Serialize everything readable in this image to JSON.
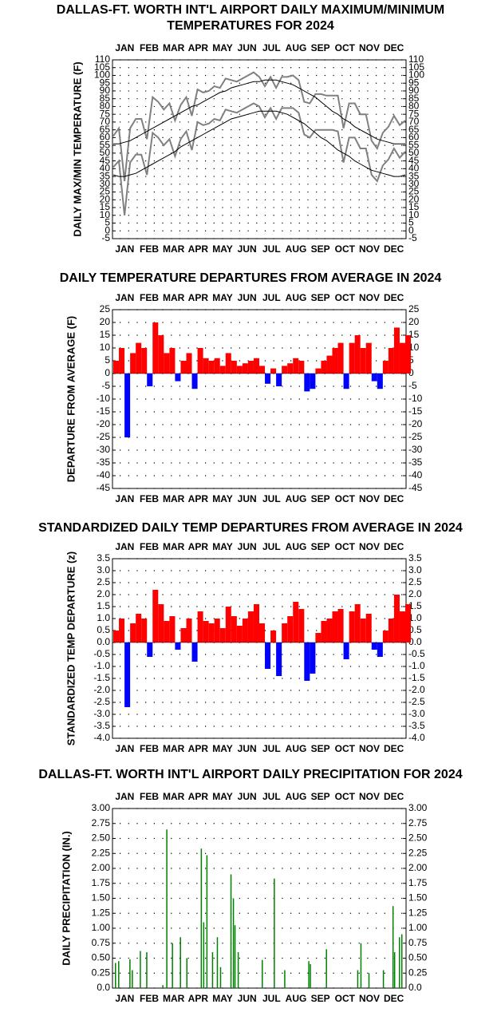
{
  "chart_data": [
    {
      "type": "line",
      "title": [
        "DALLAS-FT. WORTH INT'L AIRPORT DAILY MAXIMUM/MINIMUM",
        "TEMPERATURES FOR 2024"
      ],
      "y_label": "DAILY MAX/MIN TEMPERATURE (F)",
      "categories": [
        "JAN",
        "FEB",
        "MAR",
        "APR",
        "MAY",
        "JUN",
        "JUL",
        "AUG",
        "SEP",
        "OCT",
        "NOV",
        "DEC"
      ],
      "xlim": [
        0,
        366
      ],
      "x": [
        1,
        8,
        15,
        22,
        29,
        36,
        43,
        50,
        57,
        64,
        71,
        78,
        85,
        92,
        99,
        106,
        113,
        120,
        127,
        134,
        141,
        148,
        155,
        162,
        169,
        176,
        183,
        190,
        197,
        204,
        211,
        218,
        225,
        232,
        239,
        246,
        253,
        260,
        267,
        274,
        281,
        288,
        295,
        302,
        309,
        316,
        323,
        330,
        337,
        344,
        351,
        358,
        365
      ],
      "series": [
        {
          "color": "#808080",
          "values": [
            61,
            66,
            32,
            66,
            72,
            72,
            59,
            86,
            83,
            78,
            82,
            71,
            81,
            86,
            74,
            91,
            89,
            90,
            93,
            92,
            98,
            97,
            96,
            98,
            100,
            102,
            99,
            93,
            99,
            92,
            99,
            99,
            100,
            97,
            83,
            82,
            88,
            88,
            87,
            87,
            87,
            66,
            82,
            82,
            75,
            75,
            58,
            53,
            63,
            67,
            74,
            68,
            71
          ]
        },
        {
          "color": "#808080",
          "values": [
            41,
            45,
            10,
            44,
            49,
            49,
            36,
            63,
            60,
            55,
            59,
            48,
            59,
            64,
            52,
            70,
            68,
            69,
            72,
            71,
            78,
            77,
            76,
            78,
            80,
            82,
            80,
            73,
            79,
            72,
            79,
            79,
            79,
            76,
            62,
            60,
            65,
            65,
            65,
            65,
            64,
            44,
            60,
            60,
            53,
            53,
            36,
            32,
            42,
            46,
            53,
            47,
            51
          ]
        },
        {
          "color": "#000000",
          "values": [
            56,
            56,
            57,
            58,
            60,
            62,
            64,
            66,
            68,
            70,
            72,
            74,
            76,
            78,
            80,
            81,
            83,
            85,
            87,
            89,
            90,
            92,
            93,
            94,
            95,
            96,
            96,
            97,
            97,
            97,
            96,
            95,
            94,
            92,
            90,
            88,
            86,
            83,
            80,
            77,
            75,
            72,
            70,
            67,
            65,
            63,
            61,
            59,
            58,
            57,
            56,
            56,
            56
          ]
        },
        {
          "color": "#000000",
          "values": [
            36,
            35,
            35,
            36,
            37,
            39,
            41,
            43,
            45,
            47,
            49,
            51,
            54,
            56,
            58,
            60,
            62,
            64,
            66,
            68,
            70,
            72,
            73,
            74,
            75,
            76,
            77,
            77,
            77,
            77,
            76,
            75,
            73,
            71,
            69,
            66,
            63,
            60,
            58,
            55,
            52,
            50,
            48,
            45,
            43,
            41,
            39,
            38,
            37,
            36,
            35,
            35,
            36
          ]
        }
      ],
      "ylim": [
        -5,
        110
      ],
      "yticks": [
        -5,
        0,
        5,
        10,
        15,
        20,
        25,
        30,
        35,
        40,
        45,
        50,
        55,
        60,
        65,
        70,
        75,
        80,
        85,
        90,
        95,
        100,
        105,
        110
      ],
      "grid": true
    },
    {
      "type": "bar",
      "title": [
        "DAILY TEMPERATURE DEPARTURES FROM AVERAGE IN 2024"
      ],
      "y_label": "DEPARTURE FROM AVERAGE (F)",
      "categories": [
        "JAN",
        "FEB",
        "MAR",
        "APR",
        "MAY",
        "JUN",
        "JUL",
        "AUG",
        "SEP",
        "OCT",
        "NOV",
        "DEC"
      ],
      "xlim": [
        0,
        366
      ],
      "x": [
        1,
        8,
        15,
        22,
        29,
        36,
        43,
        50,
        57,
        64,
        71,
        78,
        85,
        92,
        99,
        106,
        113,
        120,
        127,
        134,
        141,
        148,
        155,
        162,
        169,
        176,
        183,
        190,
        197,
        204,
        211,
        218,
        225,
        232,
        239,
        246,
        253,
        260,
        267,
        274,
        281,
        288,
        295,
        302,
        309,
        316,
        323,
        330,
        337,
        344,
        351,
        358,
        365
      ],
      "values": [
        5,
        10,
        -25,
        8,
        12,
        10,
        -5,
        20,
        15,
        8,
        10,
        -3,
        5,
        8,
        -6,
        10,
        6,
        5,
        6,
        3,
        8,
        5,
        3,
        4,
        5,
        6,
        3,
        -4,
        2,
        -5,
        3,
        4,
        6,
        5,
        -7,
        -6,
        2,
        5,
        7,
        10,
        12,
        -6,
        12,
        15,
        10,
        12,
        -3,
        -6,
        5,
        10,
        18,
        12,
        15
      ],
      "color_positive": "#ff0000",
      "color_negative": "#0000ff",
      "ylim": [
        -45,
        25
      ],
      "yticks": [
        -45,
        -40,
        -35,
        -30,
        -25,
        -20,
        -15,
        -10,
        -5,
        0,
        5,
        10,
        15,
        20,
        25
      ],
      "grid": true
    },
    {
      "type": "bar",
      "title": [
        "STANDARDIZED DAILY TEMP DEPARTURES FROM AVERAGE IN 2024"
      ],
      "y_label": "STANDARDIZED TEMP DEPARTURE (z)",
      "categories": [
        "JAN",
        "FEB",
        "MAR",
        "APR",
        "MAY",
        "JUN",
        "JUL",
        "AUG",
        "SEP",
        "OCT",
        "NOV",
        "DEC"
      ],
      "xlim": [
        0,
        366
      ],
      "x": [
        1,
        8,
        15,
        22,
        29,
        36,
        43,
        50,
        57,
        64,
        71,
        78,
        85,
        92,
        99,
        106,
        113,
        120,
        127,
        134,
        141,
        148,
        155,
        162,
        169,
        176,
        183,
        190,
        197,
        204,
        211,
        218,
        225,
        232,
        239,
        246,
        253,
        260,
        267,
        274,
        281,
        288,
        295,
        302,
        309,
        316,
        323,
        330,
        337,
        344,
        351,
        358,
        365
      ],
      "values": [
        0.5,
        1.0,
        -2.7,
        0.8,
        1.2,
        1.0,
        -0.6,
        2.2,
        1.6,
        0.9,
        1.1,
        -0.3,
        0.6,
        1.0,
        -0.8,
        1.3,
        0.9,
        0.8,
        1.0,
        0.6,
        1.5,
        1.1,
        0.7,
        1.0,
        1.3,
        1.6,
        0.8,
        -1.1,
        0.5,
        -1.4,
        0.8,
        1.1,
        1.7,
        1.4,
        -1.6,
        -1.3,
        0.4,
        0.9,
        1.0,
        1.3,
        1.4,
        -0.7,
        1.3,
        1.6,
        1.0,
        1.2,
        -0.3,
        -0.6,
        0.5,
        1.0,
        2.0,
        1.3,
        1.6
      ],
      "color_positive": "#ff0000",
      "color_negative": "#0000ff",
      "ylim": [
        -4,
        3.5
      ],
      "yticks": [
        {
          "value": -4,
          "label": "-4.0"
        },
        {
          "value": -3.5,
          "label": "-3.5"
        },
        {
          "value": -3,
          "label": "-3.0"
        },
        {
          "value": -2.5,
          "label": "-2.5"
        },
        {
          "value": -2,
          "label": "-2.0"
        },
        {
          "value": -1.5,
          "label": "-1.5"
        },
        {
          "value": -1,
          "label": "-1.0"
        },
        {
          "value": -0.5,
          "label": "-0.5"
        },
        {
          "value": 0,
          "label": "0.0"
        },
        {
          "value": 0.5,
          "label": "0.5"
        },
        {
          "value": 1,
          "label": "1.0"
        },
        {
          "value": 1.5,
          "label": "1.5"
        },
        {
          "value": 2,
          "label": "2.0"
        },
        {
          "value": 2.5,
          "label": "2.5"
        },
        {
          "value": 3,
          "label": "3.0"
        },
        {
          "value": 3.5,
          "label": "3.5"
        }
      ],
      "grid": true
    },
    {
      "type": "bar",
      "title": [
        "DALLAS-FT. WORTH INT'L AIRPORT DAILY PRECIPITATION FOR 2024"
      ],
      "y_label": "DAILY PRECIPITATION (IN.)",
      "categories": [
        "JAN",
        "FEB",
        "MAR",
        "APR",
        "MAY",
        "JUN",
        "JUL",
        "AUG",
        "SEP",
        "OCT",
        "NOV",
        "DEC"
      ],
      "xlim": [
        0,
        366
      ],
      "x": [
        3,
        7,
        21,
        24,
        34,
        42,
        62,
        67,
        74,
        84,
        92,
        110,
        113,
        117,
        124,
        130,
        134,
        147,
        150,
        152,
        156,
        186,
        201,
        214,
        244,
        246,
        266,
        305,
        309,
        319,
        337,
        349,
        351,
        357,
        360
      ],
      "values": [
        0.42,
        0.45,
        0.48,
        0.3,
        0.62,
        0.6,
        0.05,
        2.65,
        0.75,
        0.85,
        0.5,
        2.33,
        1.1,
        2.22,
        0.6,
        0.85,
        0.35,
        1.9,
        1.5,
        1.05,
        0.6,
        0.47,
        1.83,
        0.3,
        0.45,
        0.4,
        0.65,
        0.3,
        0.75,
        0.25,
        0.3,
        1.37,
        0.6,
        0.85,
        0.9
      ],
      "color": "#008000",
      "ylim": [
        0,
        3
      ],
      "yticks": [
        {
          "value": 0,
          "label": "0.0"
        },
        {
          "value": 0.25,
          "label": "0.25"
        },
        {
          "value": 0.5,
          "label": "0.50"
        },
        {
          "value": 0.75,
          "label": "0.75"
        },
        {
          "value": 1,
          "label": "1.00"
        },
        {
          "value": 1.25,
          "label": "1.25"
        },
        {
          "value": 1.5,
          "label": "1.50"
        },
        {
          "value": 1.75,
          "label": "1.75"
        },
        {
          "value": 2,
          "label": "2.00"
        },
        {
          "value": 2.25,
          "label": "2.25"
        },
        {
          "value": 2.5,
          "label": "2.50"
        },
        {
          "value": 2.75,
          "label": "2.75"
        },
        {
          "value": 3,
          "label": "3.00"
        }
      ],
      "grid": true
    }
  ]
}
